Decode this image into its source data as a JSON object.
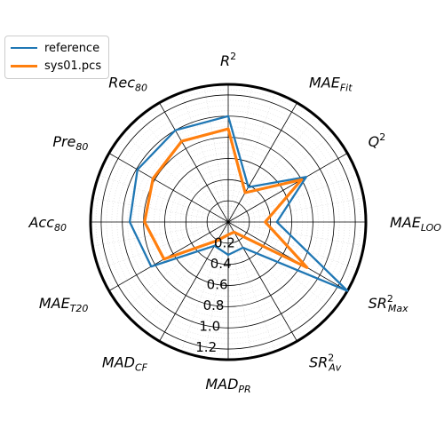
{
  "chart_data": {
    "type": "radar",
    "axes": [
      {
        "base": "R",
        "sup": "2",
        "sub": ""
      },
      {
        "base": "MAE",
        "sup": "",
        "sub": "Fit"
      },
      {
        "base": "Q",
        "sup": "2",
        "sub": ""
      },
      {
        "base": "MAE",
        "sup": "",
        "sub": "LOO"
      },
      {
        "base": "SR",
        "sup": "2",
        "sub": "Max"
      },
      {
        "base": "SR",
        "sup": "2",
        "sub": "Av"
      },
      {
        "base": "MAD",
        "sup": "",
        "sub": "PR"
      },
      {
        "base": "MAD",
        "sup": "",
        "sub": "CF"
      },
      {
        "base": "MAE",
        "sup": "",
        "sub": "T20"
      },
      {
        "base": "Acc",
        "sup": "",
        "sub": "80"
      },
      {
        "base": "Pre",
        "sup": "",
        "sub": "80"
      },
      {
        "base": "Rec",
        "sup": "",
        "sub": "80"
      }
    ],
    "radial_ticks": [
      "0.2",
      "0.4",
      "0.6",
      "0.8",
      "1.0",
      "1.2"
    ],
    "rlim": [
      0,
      1.3
    ],
    "grid": true,
    "legend_position": "top-left",
    "series": [
      {
        "name": "reference",
        "color": "#1f77b4",
        "values": [
          1.0,
          0.38,
          0.85,
          0.46,
          1.3,
          0.28,
          0.31,
          0.26,
          0.84,
          0.93,
          0.99,
          1.0
        ]
      },
      {
        "name": "sys01.pcs",
        "color": "#ff7f0e",
        "values": [
          0.88,
          0.32,
          0.8,
          0.35,
          0.86,
          0.11,
          0.12,
          0.2,
          0.7,
          0.79,
          0.82,
          0.88
        ]
      }
    ]
  }
}
